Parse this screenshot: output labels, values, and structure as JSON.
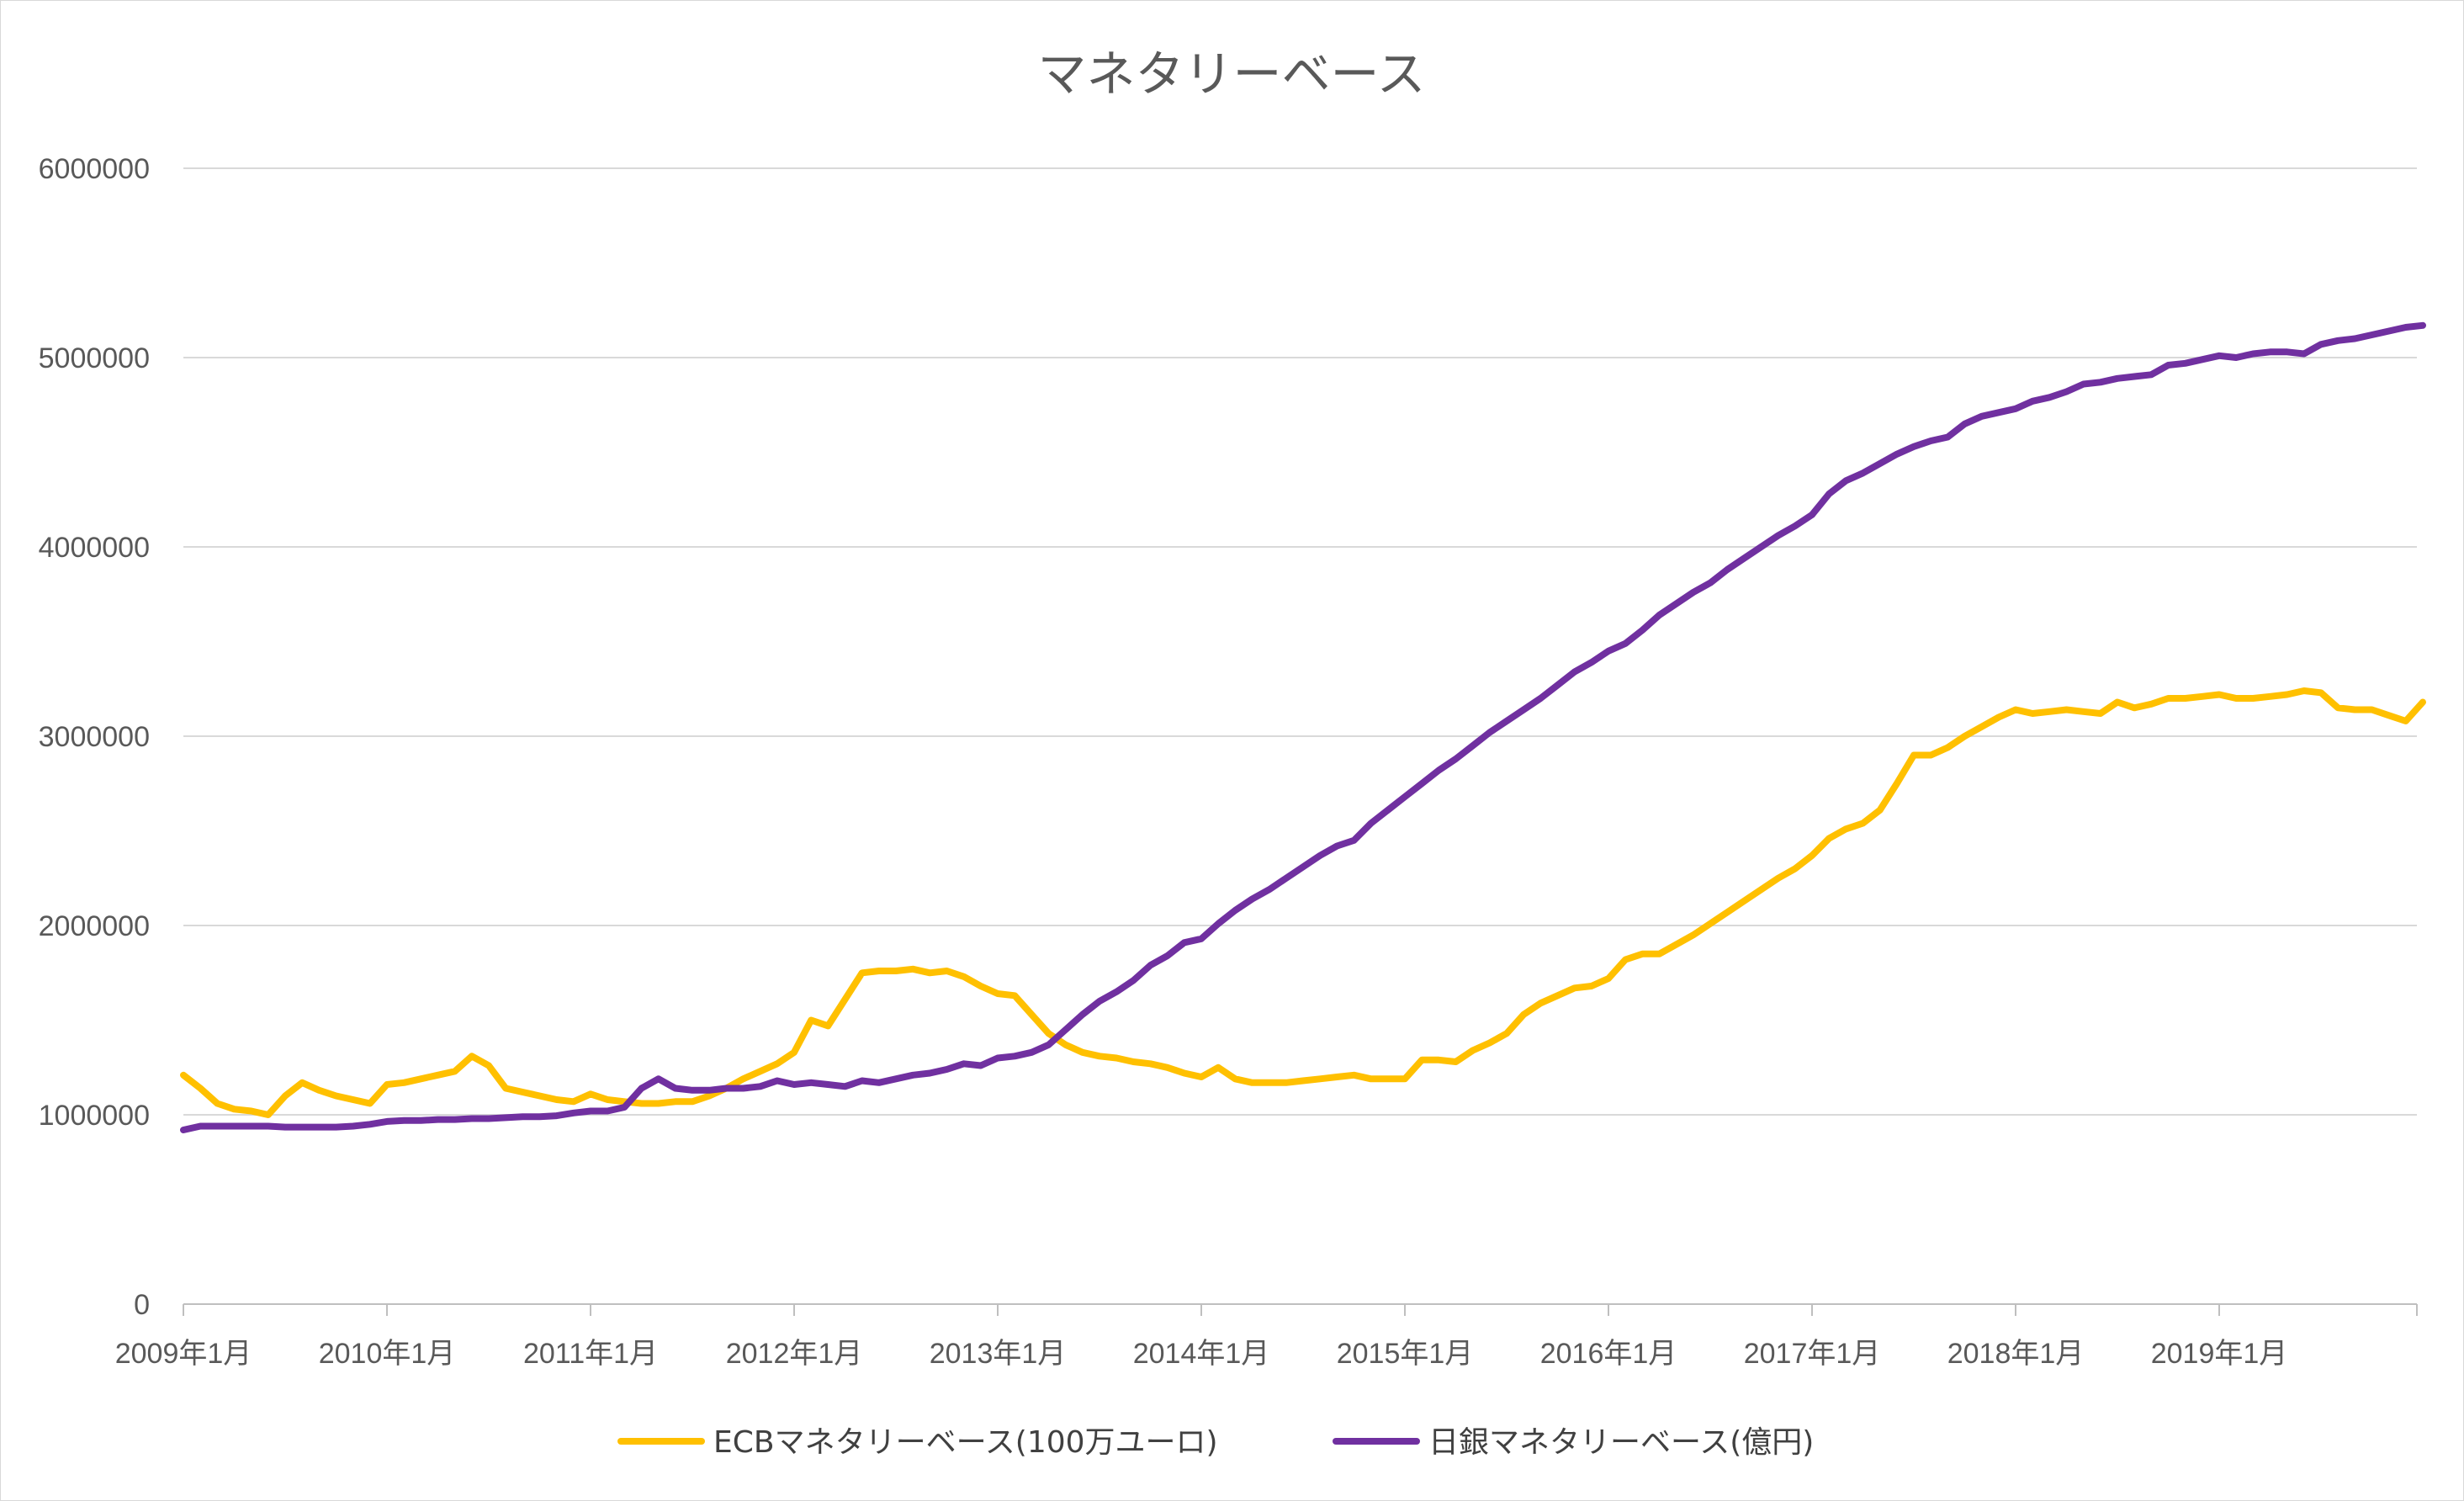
{
  "chart_data": {
    "type": "line",
    "title": "マネタリーベース",
    "xlabel": "",
    "ylabel": "",
    "ylim": [
      0,
      6000000
    ],
    "y_ticks": [
      "0",
      "1000000",
      "2000000",
      "3000000",
      "4000000",
      "5000000",
      "6000000"
    ],
    "y_tick_values": [
      0,
      1000000,
      2000000,
      3000000,
      4000000,
      5000000,
      6000000
    ],
    "x_tick_labels": [
      "2009年1月",
      "2010年1月",
      "2011年1月",
      "2012年1月",
      "2013年1月",
      "2014年1月",
      "2015年1月",
      "2016年1月",
      "2017年1月",
      "2018年1月",
      "2019年1月"
    ],
    "x_start": "2009年1月",
    "x_end": "2019年12月",
    "grid": true,
    "legend": "bottom",
    "series": [
      {
        "name": "ECBマネタリーベース(100万ユーロ)",
        "color": "#FFC000",
        "values": [
          1210000,
          1140000,
          1060000,
          1030000,
          1020000,
          1000000,
          1100000,
          1170000,
          1130000,
          1100000,
          1080000,
          1060000,
          1160000,
          1170000,
          1190000,
          1210000,
          1230000,
          1310000,
          1260000,
          1140000,
          1120000,
          1100000,
          1080000,
          1070000,
          1110000,
          1080000,
          1070000,
          1060000,
          1060000,
          1070000,
          1070000,
          1100000,
          1140000,
          1190000,
          1230000,
          1270000,
          1330000,
          1500000,
          1470000,
          1610000,
          1750000,
          1760000,
          1760000,
          1770000,
          1750000,
          1760000,
          1730000,
          1680000,
          1640000,
          1630000,
          1530000,
          1430000,
          1370000,
          1330000,
          1310000,
          1300000,
          1280000,
          1270000,
          1250000,
          1220000,
          1200000,
          1250000,
          1190000,
          1170000,
          1170000,
          1170000,
          1180000,
          1190000,
          1200000,
          1210000,
          1190000,
          1190000,
          1190000,
          1290000,
          1290000,
          1280000,
          1340000,
          1380000,
          1430000,
          1530000,
          1590000,
          1630000,
          1670000,
          1680000,
          1720000,
          1820000,
          1850000,
          1850000,
          1900000,
          1950000,
          2010000,
          2070000,
          2130000,
          2190000,
          2250000,
          2300000,
          2370000,
          2460000,
          2510000,
          2540000,
          2610000,
          2750000,
          2900000,
          2900000,
          2940000,
          3000000,
          3050000,
          3100000,
          3140000,
          3120000,
          3130000,
          3140000,
          3130000,
          3120000,
          3180000,
          3150000,
          3170000,
          3200000,
          3200000,
          3210000,
          3220000,
          3200000,
          3200000,
          3210000,
          3220000,
          3240000,
          3230000,
          3150000,
          3140000,
          3140000,
          3110000,
          3080000,
          3180000
        ]
      },
      {
        "name": "日銀マネタリーベース(億円)",
        "color": "#7030A0",
        "values": [
          920000,
          940000,
          940000,
          940000,
          940000,
          940000,
          935000,
          935000,
          935000,
          935000,
          940000,
          950000,
          965000,
          970000,
          970000,
          975000,
          975000,
          980000,
          980000,
          985000,
          990000,
          990000,
          995000,
          1010000,
          1020000,
          1020000,
          1040000,
          1140000,
          1190000,
          1140000,
          1130000,
          1130000,
          1140000,
          1140000,
          1150000,
          1180000,
          1160000,
          1170000,
          1160000,
          1150000,
          1180000,
          1170000,
          1190000,
          1210000,
          1220000,
          1240000,
          1270000,
          1260000,
          1300000,
          1310000,
          1330000,
          1370000,
          1450000,
          1530000,
          1600000,
          1650000,
          1710000,
          1790000,
          1840000,
          1910000,
          1930000,
          2010000,
          2080000,
          2140000,
          2190000,
          2250000,
          2310000,
          2370000,
          2420000,
          2450000,
          2540000,
          2610000,
          2680000,
          2750000,
          2820000,
          2880000,
          2950000,
          3020000,
          3080000,
          3140000,
          3200000,
          3270000,
          3340000,
          3390000,
          3450000,
          3490000,
          3560000,
          3640000,
          3700000,
          3760000,
          3810000,
          3880000,
          3940000,
          4000000,
          4060000,
          4110000,
          4170000,
          4280000,
          4350000,
          4390000,
          4440000,
          4490000,
          4530000,
          4560000,
          4580000,
          4650000,
          4690000,
          4710000,
          4730000,
          4770000,
          4790000,
          4820000,
          4860000,
          4870000,
          4890000,
          4900000,
          4910000,
          4960000,
          4970000,
          4990000,
          5010000,
          5000000,
          5020000,
          5030000,
          5030000,
          5020000,
          5070000,
          5090000,
          5100000,
          5120000,
          5140000,
          5160000,
          5170000
        ]
      }
    ]
  }
}
